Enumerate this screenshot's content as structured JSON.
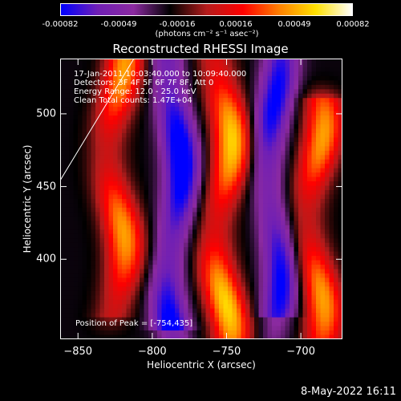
{
  "colorbar": {
    "ticks": [
      "-0.00082",
      "-0.00049",
      "-0.00016",
      "0.00016",
      "0.00049",
      "0.00082"
    ],
    "units": "(photons cm⁻² s⁻¹ asec⁻²)",
    "colors": [
      "#0000ff",
      "#6f1fb5",
      "#8b2aa0",
      "#000000",
      "#b41c1c",
      "#ff0000",
      "#ff8000",
      "#ffe000",
      "#ffffff"
    ]
  },
  "title": "Reconstructed RHESSI Image",
  "info": {
    "line1": "17-Jan-2011 10:03:40.000 to 10:09:40.000",
    "line2": "Detectors: 3F 4F 5F 6F 7F 8F, Att 0",
    "line3": "Energy Range: 12.0 - 25.0 keV",
    "line4": "Clean   Total counts: 1.47E+04",
    "peak": "Position of Peak = [-754,435]"
  },
  "chart_data": {
    "type": "heatmap",
    "title": "Reconstructed RHESSI Image",
    "xlabel": "Heliocentric X (arcsec)",
    "ylabel": "Heliocentric Y (arcsec)",
    "xlim": [
      -862,
      -672
    ],
    "ylim": [
      345,
      538
    ],
    "xticks": [
      -850,
      -800,
      -750,
      -700
    ],
    "yticks": [
      400,
      450,
      500
    ],
    "xtick_labels": [
      "−850",
      "−800",
      "−750",
      "−700"
    ],
    "ytick_labels": [
      "400",
      "450",
      "500"
    ],
    "vrange": [
      -0.00082,
      0.00082
    ],
    "bright_bands": [
      {
        "x": -824,
        "ymin": 370,
        "ymax": 530,
        "peak": 0.0007
      },
      {
        "x": -752,
        "ymin": 350,
        "ymax": 538,
        "peak": 0.00082
      },
      {
        "x": -690,
        "ymin": 350,
        "ymax": 500,
        "peak": 0.0007
      }
    ],
    "dark_bands": [
      {
        "x": -785,
        "ymin": 360,
        "ymax": 538,
        "trough": -0.00082
      },
      {
        "x": -718,
        "ymin": 370,
        "ymax": 538,
        "trough": -0.0007
      }
    ],
    "peak_position": [
      -754,
      435
    ]
  },
  "timestamp": "8-May-2022 16:11"
}
